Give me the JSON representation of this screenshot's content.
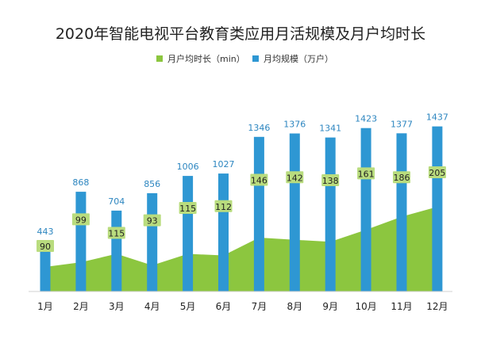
{
  "chart_data": {
    "type": "bar",
    "title": "2020年智能电视平台教育类应用月活规模及月户均时长",
    "categories": [
      "1月",
      "2月",
      "3月",
      "4月",
      "5月",
      "6月",
      "7月",
      "8月",
      "9月",
      "10月",
      "11月",
      "12月"
    ],
    "series": [
      {
        "name": "月均规模（万户）",
        "type": "bar",
        "color": "#2e97d3",
        "values": [
          443,
          868,
          704,
          856,
          1006,
          1027,
          1346,
          1376,
          1341,
          1423,
          1377,
          1437
        ]
      },
      {
        "name": "月户均时长（min）",
        "type": "area",
        "color": "#8cc63f",
        "values": [
          90,
          99,
          115,
          93,
          115,
          112,
          146,
          142,
          138,
          161,
          186,
          205
        ]
      }
    ],
    "legend_position": "top-center",
    "grid": false
  }
}
